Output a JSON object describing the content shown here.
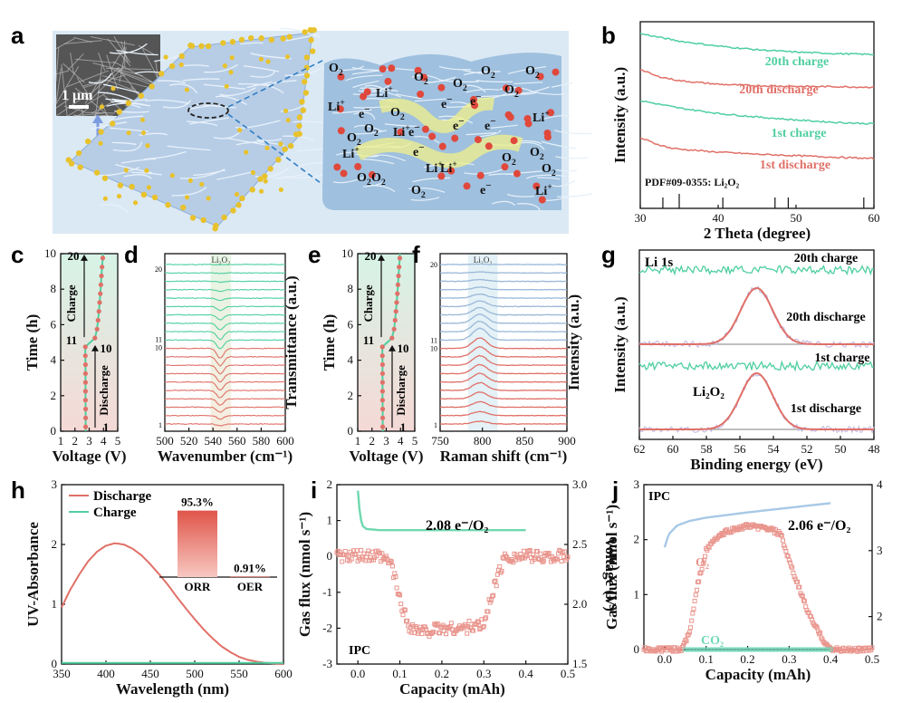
{
  "panel_letters": [
    "a",
    "b",
    "c",
    "d",
    "e",
    "f",
    "g",
    "h",
    "i",
    "j"
  ],
  "panel_a": {
    "scale_bar": "1 μm",
    "species": [
      "O2",
      "e-",
      "Li+"
    ],
    "label_pool": [
      "O2",
      "O2",
      "O2",
      "O2",
      "Li+",
      "e-",
      "O2",
      "e-",
      "e-",
      "Li+",
      "O2",
      "e-",
      "O2",
      "Li+",
      "O2",
      "Li+",
      "e-",
      "Li+",
      "e-",
      "e-",
      "O2",
      "Li+",
      "O2",
      "O2",
      "O2",
      "Li+",
      "Li+",
      "O2",
      "O2",
      "e-",
      "O2"
    ]
  },
  "chart_data": [
    {
      "panel": "b",
      "type": "line",
      "xlabel": "2 Theta (degree)",
      "ylabel": "Intensity (a.u.)",
      "xlim": [
        30,
        60
      ],
      "xticks": [
        30,
        40,
        50,
        60
      ],
      "reference_label": "PDF#09-0355: Li₂O₂",
      "reference_peaks": [
        32.9,
        35.0,
        40.6,
        47.3,
        49.0,
        58.7
      ],
      "series": [
        {
          "name": "20th charge",
          "color": "#4fcfa0",
          "x": [
            30,
            35,
            40,
            45,
            50,
            55,
            60
          ],
          "y": [
            5.2,
            4.95,
            4.78,
            4.66,
            4.58,
            4.53,
            4.5
          ]
        },
        {
          "name": "20th discharge",
          "color": "#e07068",
          "x": [
            30,
            32,
            35,
            40,
            45,
            50,
            55,
            60
          ],
          "y": [
            4.0,
            3.78,
            3.62,
            3.5,
            3.45,
            3.43,
            3.42,
            3.4
          ]
        },
        {
          "name": "1st charge",
          "color": "#4fcfa0",
          "x": [
            30,
            35,
            40,
            45,
            50,
            55,
            60
          ],
          "y": [
            2.95,
            2.7,
            2.52,
            2.4,
            2.3,
            2.22,
            2.17
          ]
        },
        {
          "name": "1st discharge",
          "color": "#e07068",
          "x": [
            30,
            32,
            34,
            36,
            40,
            45,
            50,
            55,
            60
          ],
          "y": [
            1.7,
            1.5,
            1.35,
            1.3,
            1.22,
            1.15,
            1.1,
            1.05,
            1.0
          ]
        }
      ]
    },
    {
      "panel": "c",
      "type": "scatter",
      "xlabel": "Voltage (V)",
      "ylabel": "Time (h)",
      "xlim": [
        1,
        5
      ],
      "ylim": [
        0,
        10
      ],
      "xticks": [
        1,
        2,
        3,
        4,
        5
      ],
      "yticks": [
        0,
        2,
        4,
        6,
        8,
        10
      ],
      "annotations": [
        "20",
        "Charge",
        "11",
        "10",
        "Discharge",
        "1"
      ],
      "x": [
        2.75,
        2.75,
        2.75,
        2.74,
        2.74,
        2.74,
        2.74,
        2.74,
        2.73,
        2.73,
        3.4,
        3.55,
        3.62,
        3.68,
        3.73,
        3.78,
        3.82,
        3.86,
        3.9,
        3.95
      ],
      "y": [
        0.25,
        0.75,
        1.25,
        1.75,
        2.25,
        2.75,
        3.25,
        3.75,
        4.25,
        4.75,
        5.25,
        5.75,
        6.25,
        6.75,
        7.25,
        7.75,
        8.25,
        8.75,
        9.25,
        9.75
      ]
    },
    {
      "panel": "d",
      "type": "line",
      "xlabel": "Wavenumber (cm⁻¹)",
      "ylabel": "Transmittance (a.u.)",
      "xlim": [
        500,
        600
      ],
      "xticks": [
        500,
        520,
        540,
        560,
        580,
        600
      ],
      "highlight_label": "Li₂O₂",
      "highlight_range": [
        538,
        555
      ],
      "stack_labels": [
        "20",
        "11",
        "10",
        "1"
      ],
      "peak_center": 546,
      "discharge_depths": [
        0.3,
        0.55,
        0.8,
        1.0,
        1.15,
        1.25,
        1.3,
        1.35,
        1.4,
        1.5
      ],
      "charge_depths": [
        1.4,
        1.2,
        1.0,
        0.8,
        0.6,
        0.4,
        0.25,
        0.15,
        0.08,
        0.04
      ]
    },
    {
      "panel": "e",
      "type": "scatter",
      "xlabel": "Voltage (V)",
      "ylabel": "Time (h)",
      "xlim": [
        1,
        5
      ],
      "ylim": [
        0,
        10
      ],
      "xticks": [
        1,
        2,
        3,
        4,
        5
      ],
      "yticks": [
        0,
        2,
        4,
        6,
        8,
        10
      ],
      "annotations": [
        "20",
        "Charge",
        "11",
        "10",
        "Discharge",
        "1"
      ],
      "x": [
        2.75,
        2.75,
        2.75,
        2.74,
        2.74,
        2.74,
        2.74,
        2.74,
        2.73,
        2.73,
        3.4,
        3.55,
        3.62,
        3.68,
        3.73,
        3.78,
        3.82,
        3.86,
        3.9,
        3.95
      ],
      "y": [
        0.25,
        0.75,
        1.25,
        1.75,
        2.25,
        2.75,
        3.25,
        3.75,
        4.25,
        4.75,
        5.25,
        5.75,
        6.25,
        6.75,
        7.25,
        7.75,
        8.25,
        8.75,
        9.25,
        9.75
      ]
    },
    {
      "panel": "f",
      "type": "line",
      "xlabel": "Raman shift (cm⁻¹)",
      "ylabel": "Intensity (a.u.)",
      "xlim": [
        750,
        900
      ],
      "xticks": [
        750,
        800,
        850,
        900
      ],
      "highlight_label": "Li₂O₂",
      "highlight_range": [
        783,
        818
      ],
      "stack_labels": [
        "20",
        "11",
        "10",
        "1"
      ],
      "peak_center": 797,
      "discharge_heights": [
        0.3,
        0.45,
        0.6,
        0.75,
        0.85,
        0.95,
        1.0,
        1.05,
        1.1,
        1.15
      ],
      "charge_heights": [
        1.3,
        1.15,
        1.0,
        0.8,
        0.6,
        0.45,
        0.3,
        0.2,
        0.1,
        0.05
      ]
    },
    {
      "panel": "g",
      "type": "line",
      "title": "Li 1s",
      "xlabel": "Binding energy (eV)",
      "ylabel": "Intensity (a.u.)",
      "xlim": [
        62,
        48
      ],
      "xticks": [
        62,
        60,
        58,
        56,
        54,
        52,
        50,
        48
      ],
      "peak_label": "Li₂O₂",
      "series": [
        {
          "name": "20th charge",
          "color": "#4fcfa0",
          "peak": false
        },
        {
          "name": "20th discharge",
          "color": "#e07068",
          "peak": true,
          "center": 55.0
        },
        {
          "name": "1st charge",
          "color": "#4fcfa0",
          "peak": false
        },
        {
          "name": "1st discharge",
          "color": "#e07068",
          "peak": true,
          "center": 55.0
        }
      ]
    },
    {
      "panel": "h",
      "type": "line",
      "xlabel": "Wavelength (nm)",
      "ylabel": "UV-Absorbance",
      "xlim": [
        350,
        600
      ],
      "ylim": [
        0,
        3
      ],
      "xticks": [
        350,
        400,
        450,
        500,
        550,
        600
      ],
      "yticks": [
        0,
        1,
        2,
        3
      ],
      "series": [
        {
          "name": "Discharge",
          "color": "#e07068",
          "x": [
            350,
            360,
            370,
            380,
            390,
            400,
            410,
            420,
            430,
            440,
            450,
            460,
            470,
            480,
            490,
            500,
            510,
            520,
            530,
            540,
            550,
            560,
            570,
            580,
            590,
            600
          ],
          "y": [
            0.95,
            1.25,
            1.5,
            1.72,
            1.88,
            1.98,
            2.02,
            2.0,
            1.93,
            1.82,
            1.67,
            1.5,
            1.32,
            1.12,
            0.93,
            0.75,
            0.58,
            0.43,
            0.3,
            0.2,
            0.12,
            0.07,
            0.04,
            0.02,
            0.01,
            0.0
          ]
        },
        {
          "name": "Charge",
          "color": "#4fcfa0",
          "x": [
            350,
            600
          ],
          "y": [
            0.02,
            0.02
          ]
        }
      ],
      "inset": {
        "type": "bar",
        "categories": [
          "ORR",
          "OER"
        ],
        "values": [
          95.3,
          0.91
        ],
        "value_labels": [
          "95.3%",
          "0.91%"
        ]
      }
    },
    {
      "panel": "i",
      "type": "scatter",
      "xlabel": "Capacity (mAh)",
      "ylabel": "Gas flux (nmol s⁻¹)",
      "y2label": "Voltage (V)",
      "xlim": [
        -0.05,
        0.5
      ],
      "ylim": [
        -3,
        2
      ],
      "y2lim": [
        1.5,
        3.0
      ],
      "xticks": [
        0.0,
        0.1,
        0.2,
        0.3,
        0.4,
        0.5
      ],
      "yticks": [
        -3,
        -2,
        -1,
        0,
        1,
        2
      ],
      "y2ticks": [
        1.5,
        2.0,
        2.5,
        3.0
      ],
      "annotation": "2.08 e⁻/O₂",
      "label": "IPC",
      "voltage": {
        "x": [
          0.0,
          0.005,
          0.01,
          0.02,
          0.05,
          0.1,
          0.2,
          0.3,
          0.4
        ],
        "y": [
          2.95,
          2.75,
          2.66,
          2.63,
          2.62,
          2.62,
          2.62,
          2.62,
          2.62
        ]
      },
      "gas_flux": {
        "x": [
          -0.05,
          0.0,
          0.05,
          0.08,
          0.1,
          0.12,
          0.15,
          0.2,
          0.25,
          0.3,
          0.32,
          0.35,
          0.4,
          0.45,
          0.5
        ],
        "y": [
          0.0,
          0.0,
          0.0,
          -0.2,
          -1.2,
          -1.9,
          -2.1,
          -2.0,
          -2.0,
          -1.9,
          -1.0,
          0.0,
          0.0,
          0.0,
          0.0
        ]
      }
    },
    {
      "panel": "j",
      "type": "scatter",
      "xlabel": "Capacity (mAh)",
      "ylabel": "Gas flux (nmol s⁻¹)",
      "y2label": "Voltage (V)",
      "xlim": [
        -0.05,
        0.5
      ],
      "ylim": [
        0,
        3
      ],
      "y2lim": [
        1.5,
        4
      ],
      "xticks": [
        0.0,
        0.1,
        0.2,
        0.3,
        0.4,
        0.5
      ],
      "yticks": [
        0,
        1,
        2,
        3
      ],
      "y2ticks": [
        2,
        3,
        4
      ],
      "annotation": "2.06 e⁻/O₂",
      "label": "IPC",
      "legend": [
        "O₂",
        "CO₂"
      ],
      "voltage": {
        "x": [
          0.0,
          0.01,
          0.03,
          0.06,
          0.1,
          0.2,
          0.3,
          0.4
        ],
        "y": [
          3.05,
          3.25,
          3.38,
          3.45,
          3.5,
          3.58,
          3.65,
          3.72
        ]
      },
      "o2_flux": {
        "x": [
          -0.05,
          0.0,
          0.04,
          0.06,
          0.08,
          0.1,
          0.12,
          0.15,
          0.2,
          0.25,
          0.28,
          0.3,
          0.32,
          0.35,
          0.38,
          0.4,
          0.45,
          0.5
        ],
        "y": [
          0.0,
          0.0,
          0.0,
          0.3,
          1.2,
          1.8,
          2.0,
          2.15,
          2.25,
          2.2,
          2.1,
          1.6,
          1.2,
          0.6,
          0.2,
          0.0,
          0.0,
          0.0
        ]
      },
      "co2_flux": {
        "x": [
          0.05,
          0.4
        ],
        "y": [
          0.0,
          0.0
        ]
      }
    }
  ]
}
